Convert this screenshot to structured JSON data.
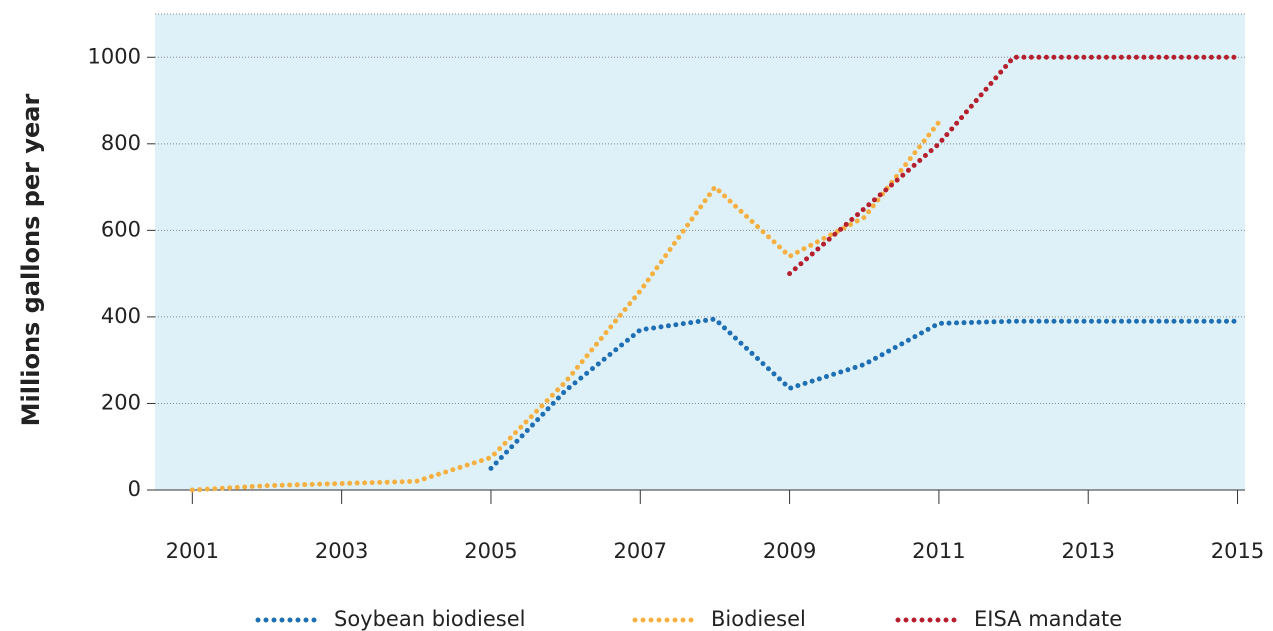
{
  "chart_data": {
    "type": "line",
    "y_label": "Millions gallons per year",
    "xlim": [
      2000.5,
      2015.1
    ],
    "xticks": [
      2001,
      2003,
      2005,
      2007,
      2009,
      2011,
      2013,
      2015
    ],
    "ylim": [
      0,
      1100
    ],
    "yticks": [
      0,
      200,
      400,
      600,
      800,
      1000
    ],
    "grid": true,
    "legend": "bottom",
    "series": [
      {
        "name": "Soybean biodiesel",
        "color": "#1f6fb4",
        "x": [
          2005,
          2006,
          2007,
          2008,
          2009,
          2010,
          2011,
          2012,
          2013,
          2014,
          2015
        ],
        "values": [
          50,
          230,
          370,
          395,
          235,
          290,
          385,
          390,
          390,
          390,
          390
        ]
      },
      {
        "name": "Biodiesel",
        "color": "#f5b041",
        "x": [
          2001,
          2002,
          2003,
          2004,
          2005,
          2006,
          2007,
          2008,
          2009,
          2010,
          2011
        ],
        "values": [
          0,
          10,
          15,
          20,
          75,
          250,
          460,
          700,
          540,
          630,
          850
        ]
      },
      {
        "name": "EISA mandate",
        "color": "#b5202e",
        "x": [
          2009,
          2010,
          2011,
          2012,
          2013,
          2014,
          2015
        ],
        "values": [
          500,
          650,
          800,
          1000,
          1000,
          1000,
          1000
        ]
      }
    ]
  }
}
